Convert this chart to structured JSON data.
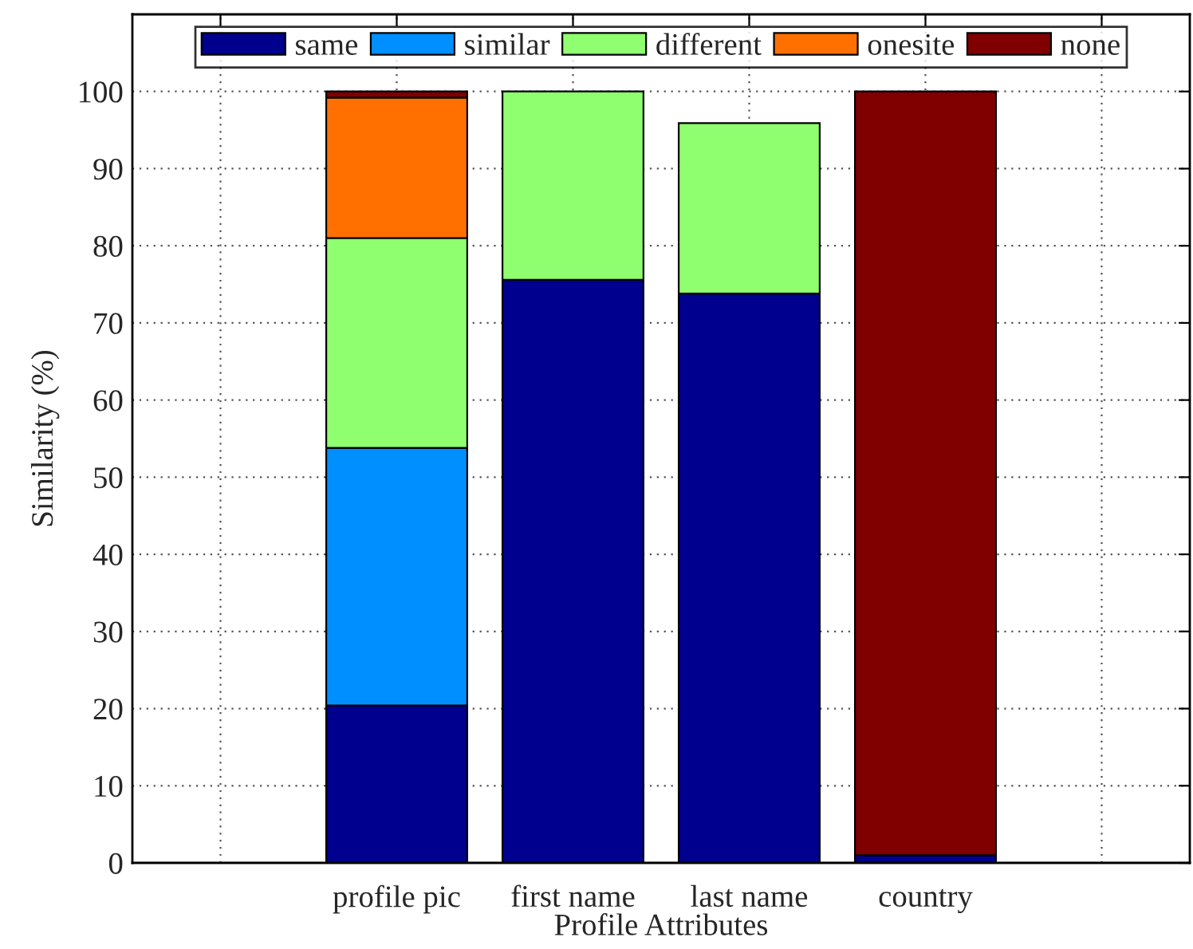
{
  "chart_data": {
    "type": "bar",
    "stacked": true,
    "xlabel": "Profile Attributes",
    "ylabel": "Similarity (%)",
    "categories": [
      null,
      "profile pic",
      "first name",
      "last name",
      "country",
      null
    ],
    "series": [
      {
        "name": "same",
        "color": "#00008f",
        "values": [
          0,
          20.4,
          75.6,
          73.8,
          1.0,
          0
        ]
      },
      {
        "name": "similar",
        "color": "#008fff",
        "values": [
          0,
          33.4,
          0,
          0,
          0,
          0
        ]
      },
      {
        "name": "different",
        "color": "#8fff70",
        "values": [
          0,
          27.2,
          24.4,
          22.1,
          0,
          0
        ]
      },
      {
        "name": "onesite",
        "color": "#ff7000",
        "values": [
          0,
          18.2,
          0,
          0,
          0,
          0
        ]
      },
      {
        "name": "none",
        "color": "#800000",
        "values": [
          0,
          0.8,
          0,
          0,
          99.0,
          0
        ]
      }
    ],
    "ylim": [
      0,
      110
    ],
    "yticks": [
      0,
      10,
      20,
      30,
      40,
      50,
      60,
      70,
      80,
      90,
      100
    ],
    "grid": true,
    "legend": "top"
  }
}
